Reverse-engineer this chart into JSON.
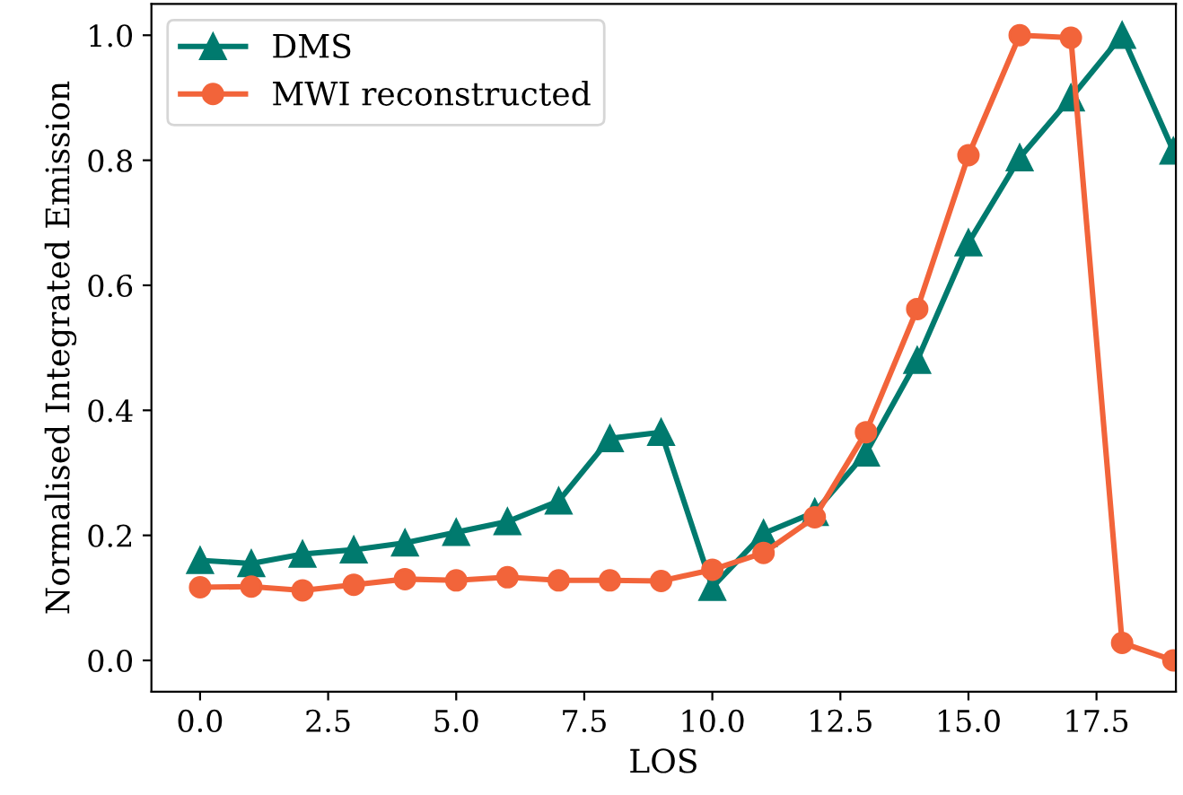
{
  "chart_data": {
    "type": "line",
    "xlabel": "LOS",
    "ylabel": "Normalised Integrated Emission",
    "x": [
      0,
      1,
      2,
      3,
      4,
      5,
      6,
      7,
      8,
      9,
      10,
      11,
      12,
      13,
      14,
      15,
      16,
      17,
      18,
      19
    ],
    "series": [
      {
        "name": "DMS",
        "color": "#007a6e",
        "marker": "triangle",
        "values": [
          0.16,
          0.155,
          0.17,
          0.177,
          0.188,
          0.205,
          0.222,
          0.255,
          0.355,
          0.365,
          0.117,
          0.203,
          0.237,
          0.332,
          0.48,
          0.668,
          0.804,
          0.9,
          1.0,
          0.815
        ]
      },
      {
        "name": "MWI reconstructed",
        "color": "#f2643a",
        "marker": "circle",
        "values": [
          0.117,
          0.118,
          0.112,
          0.121,
          0.13,
          0.128,
          0.133,
          0.128,
          0.128,
          0.127,
          0.145,
          0.172,
          0.229,
          0.365,
          0.562,
          0.808,
          1.0,
          0.996,
          0.028,
          0.0
        ]
      }
    ],
    "xlim": [
      -0.95,
      19.05
    ],
    "ylim": [
      -0.05,
      1.05
    ],
    "xticks": [
      {
        "value": 0,
        "label": "0.0"
      },
      {
        "value": 2.5,
        "label": "2.5"
      },
      {
        "value": 5,
        "label": "5.0"
      },
      {
        "value": 7.5,
        "label": "7.5"
      },
      {
        "value": 10,
        "label": "10.0"
      },
      {
        "value": 12.5,
        "label": "12.5"
      },
      {
        "value": 15,
        "label": "15.0"
      },
      {
        "value": 17.5,
        "label": "17.5"
      }
    ],
    "yticks": [
      {
        "value": 0,
        "label": "0.0"
      },
      {
        "value": 0.2,
        "label": "0.2"
      },
      {
        "value": 0.4,
        "label": "0.4"
      },
      {
        "value": 0.6,
        "label": "0.6"
      },
      {
        "value": 0.8,
        "label": "0.8"
      },
      {
        "value": 1.0,
        "label": "1.0"
      }
    ],
    "grid": false,
    "legend": "top left",
    "line_style": "solid"
  }
}
